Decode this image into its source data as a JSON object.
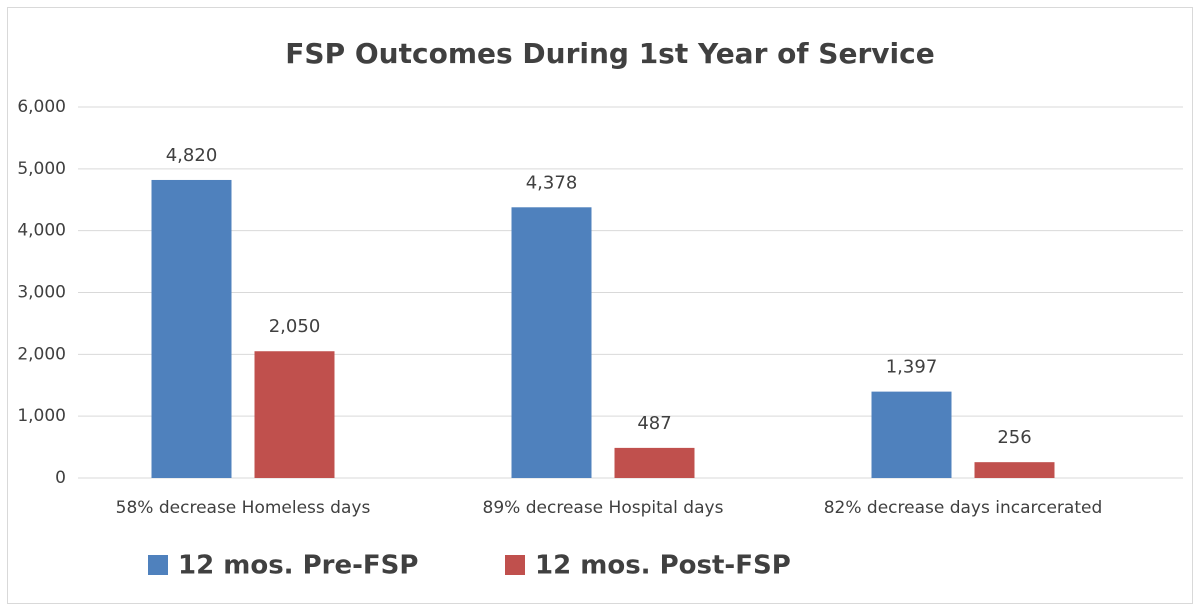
{
  "chart_data": {
    "type": "bar",
    "title": "FSP Outcomes During 1st Year of Service",
    "categories": [
      "58% decrease Homeless days",
      "89% decrease Hospital days",
      "82% decrease days incarcerated"
    ],
    "series": [
      {
        "name": "12 mos. Pre-FSP",
        "color": "#4f81bd",
        "values": [
          4820,
          4378,
          1397
        ],
        "value_labels": [
          "4,820",
          "4,378",
          "1,397"
        ]
      },
      {
        "name": "12 mos. Post-FSP",
        "color": "#c0504d",
        "values": [
          2050,
          487,
          256
        ],
        "value_labels": [
          "2,050",
          "487",
          "256"
        ]
      }
    ],
    "ylim": [
      0,
      6000
    ],
    "yticks": [
      0,
      {
        "value": 1000,
        "label": "1,000"
      },
      {
        "value": 2000,
        "label": "2,000"
      },
      {
        "value": 3000,
        "label": "3,000"
      },
      {
        "value": 4000,
        "label": "4,000"
      },
      {
        "value": 5000,
        "label": "5,000"
      },
      {
        "value": 6000,
        "label": "6,000"
      }
    ],
    "grid": true,
    "legend": "bottom"
  }
}
